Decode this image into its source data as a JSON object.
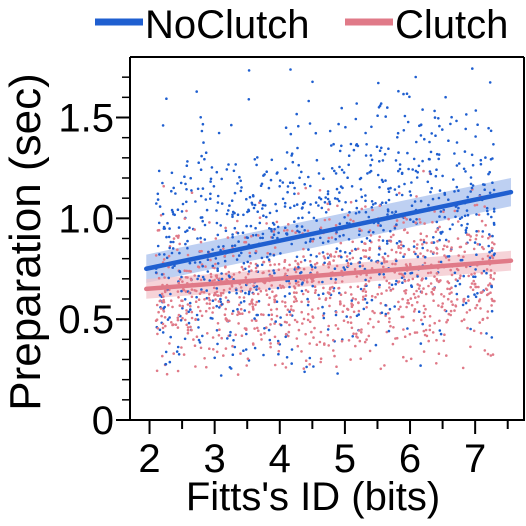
{
  "chart_data": {
    "type": "scatter",
    "xlabel": "Fitts's ID (bits)",
    "ylabel": "Preparation (sec)",
    "xlim": [
      1.7,
      7.75
    ],
    "ylim": [
      0,
      1.8
    ],
    "x_ticks": [
      2,
      3,
      4,
      5,
      6,
      7
    ],
    "x_tick_labels": [
      "2",
      "3",
      "4",
      "5",
      "6",
      "7"
    ],
    "y_ticks": [
      0,
      0.5,
      1.0,
      1.5
    ],
    "y_tick_labels": [
      "0",
      "0.5",
      "1.0",
      "1.5"
    ],
    "grid": false,
    "legend_position": "top",
    "series": [
      {
        "name": "NoClutch",
        "color": "#1f5fd0",
        "band_color": "#a8c0ee",
        "trend": {
          "x": [
            1.95,
            7.55
          ],
          "y": [
            0.75,
            1.13
          ],
          "ci_halfwidth": 0.05
        },
        "point_count": 950,
        "point_center": 0.97,
        "point_spread": 0.32
      },
      {
        "name": "Clutch",
        "color": "#e07a88",
        "band_color": "#f3c4cb",
        "trend": {
          "x": [
            1.95,
            7.55
          ],
          "y": [
            0.65,
            0.79
          ],
          "ci_halfwidth": 0.035
        },
        "point_count": 1050,
        "point_center": 0.6,
        "point_spread": 0.18
      }
    ]
  }
}
